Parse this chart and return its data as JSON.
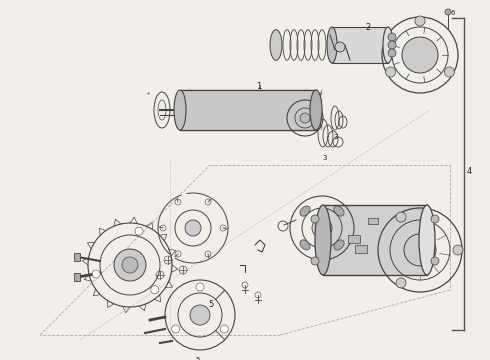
{
  "background_color": "#f2efea",
  "fig_width": 4.9,
  "fig_height": 3.6,
  "dpi": 100,
  "diagram_color": "#444444",
  "line_color": "#777777",
  "text_color": "#222222",
  "bracket_color": "#555555"
}
